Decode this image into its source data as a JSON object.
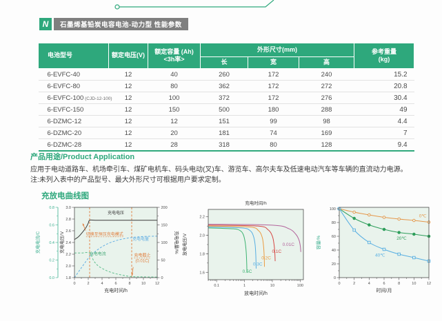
{
  "page": {
    "badge_title": "石墨烯基铅炭电容电池-动力型 性能参数",
    "logo_glyph": "N"
  },
  "colors": {
    "accent_green": "#2ea87c",
    "badge_gray": "#7f7f7f",
    "chart_bg": "#e9f3ec",
    "axis_gray": "#4a4a4a",
    "annotation_orange": "#e07b39",
    "teal_axis": "#3aae8e"
  },
  "table": {
    "headers": {
      "model": "电池型号",
      "voltage": "额定电压(V)",
      "capacity_line1": "额定容量 (Ah)",
      "capacity_line2": "<3h率>",
      "dimensions": "外形尺寸(mm)",
      "length": "长",
      "width": "宽",
      "height": "高",
      "weight_line1": "参考重量",
      "weight_line2": "(kg)"
    },
    "rows": [
      {
        "model": "6-EVFC-40",
        "suffix": "",
        "voltage": "12",
        "capacity": "40",
        "length": "260",
        "width": "172",
        "height": "240",
        "weight": "15.2"
      },
      {
        "model": "6-EVFC-80",
        "suffix": "",
        "voltage": "12",
        "capacity": "80",
        "length": "362",
        "width": "172",
        "height": "272",
        "weight": "20.8"
      },
      {
        "model": "6-EVFC-100",
        "suffix": "(CJD-12-100)",
        "voltage": "12",
        "capacity": "100",
        "length": "372",
        "width": "172",
        "height": "276",
        "weight": "30.4"
      },
      {
        "model": "6-EVFC-150",
        "suffix": "",
        "voltage": "12",
        "capacity": "150",
        "length": "500",
        "width": "180",
        "height": "288",
        "weight": "49"
      },
      {
        "model": "6-DZMC-12",
        "suffix": "",
        "voltage": "12",
        "capacity": "12",
        "length": "151",
        "width": "99",
        "height": "98",
        "weight": "4.4"
      },
      {
        "model": "6-DZMC-20",
        "suffix": "",
        "voltage": "12",
        "capacity": "20",
        "length": "181",
        "width": "74",
        "height": "169",
        "weight": "7"
      },
      {
        "model": "6-DZMC-28",
        "suffix": "",
        "voltage": "12",
        "capacity": "28",
        "length": "318",
        "width": "80",
        "height": "128",
        "weight": "9.4"
      }
    ]
  },
  "application": {
    "title": "产品用途/Product Application",
    "line1": "应用于电动道路车、机场牵引车、煤矿电机车、码头电动(叉)车、游览车、高尔夫车及低速电动汽车等车辆的直流动力电源。",
    "line2": "注:未列入表中的产品型号、最大外形尺寸可根据用户要求定制。"
  },
  "curves_section": {
    "title": "充放电曲线图"
  },
  "chart_data": [
    {
      "type": "line",
      "name": "charge-curve",
      "xlabel": "充电时间/h",
      "xlim": [
        0,
        12
      ],
      "x_ticks": [
        0,
        2,
        4,
        6,
        8,
        10,
        12
      ],
      "axes": {
        "current": {
          "label": "充电电流/C",
          "ticks": [
            0.0,
            0.2,
            0.4,
            0.6,
            0.8
          ],
          "lim": [
            0,
            0.8
          ],
          "color": "#3aae8e"
        },
        "voltage": {
          "label": "充电电压/V",
          "ticks": [
            1.8,
            2.0,
            2.2,
            2.4,
            2.6,
            2.8,
            3.0
          ],
          "lim": [
            1.8,
            3.0
          ],
          "color": "#4a4a4a"
        },
        "capacity": {
          "label": "充电电量/%",
          "ticks": [
            0,
            50,
            100,
            150,
            200
          ],
          "lim": [
            0,
            200
          ],
          "color": "#4a4a4a"
        }
      },
      "vlines": [
        2.2,
        8.3
      ],
      "series": [
        {
          "name": "充电电压",
          "axis": "voltage",
          "style": "solid",
          "color": "#3a3a3a",
          "points": [
            [
              0,
              2.45
            ],
            [
              0.6,
              2.5
            ],
            [
              1.2,
              2.58
            ],
            [
              1.7,
              2.66
            ],
            [
              2.0,
              2.73
            ],
            [
              2.2,
              2.78
            ],
            [
              3,
              2.78
            ],
            [
              5,
              2.78
            ],
            [
              8,
              2.78
            ],
            [
              12,
              2.78
            ]
          ]
        },
        {
          "name": "充电电流",
          "axis": "current",
          "style": "dashed",
          "color": "#5fbe8d",
          "points": [
            [
              0,
              0.28
            ],
            [
              1,
              0.28
            ],
            [
              2.2,
              0.28
            ],
            [
              2.8,
              0.19
            ],
            [
              3.5,
              0.13
            ],
            [
              4.5,
              0.085
            ],
            [
              5.5,
              0.055
            ],
            [
              6.5,
              0.035
            ],
            [
              7.5,
              0.02
            ],
            [
              8.3,
              0.012
            ],
            [
              10,
              0.008
            ],
            [
              12,
              0.006
            ]
          ]
        },
        {
          "name": "充电电量",
          "axis": "capacity",
          "style": "dashed",
          "color": "#62aee3",
          "points": [
            [
              0,
              0
            ],
            [
              1,
              28
            ],
            [
              2.2,
              60
            ],
            [
              3,
              74
            ],
            [
              4,
              88
            ],
            [
              5,
              98
            ],
            [
              6,
              105
            ],
            [
              7,
              110
            ],
            [
              8.3,
              114
            ],
            [
              10,
              117
            ],
            [
              12,
              118
            ]
          ]
        }
      ],
      "annotations": [
        {
          "text": "充电电压",
          "color": "#3a3a3a",
          "fx": 0.4,
          "fy": 0.1
        },
        {
          "text": "切换至恒压充电模式",
          "color": "#e07b39",
          "fx": 0.14,
          "fy": 0.4,
          "underline": true,
          "arrow": {
            "from": [
              0.135,
              0.33
            ],
            "to": [
              0.1,
              0.23
            ]
          }
        },
        {
          "text": "充电电流",
          "color": "#45a877",
          "fx": 0.18,
          "fy": 0.68
        },
        {
          "text": "充电电量",
          "color": "#62aee3",
          "fx": 0.7,
          "fy": 0.47
        },
        {
          "text": "充电截止",
          "text2": "(0.01C)",
          "color": "#e07b39",
          "fx": 0.72,
          "fy": 0.7,
          "underline": true,
          "arrow": {
            "from": [
              0.71,
              0.85
            ],
            "to": [
              0.695,
              0.97
            ]
          }
        }
      ]
    },
    {
      "type": "line",
      "name": "discharge-curve",
      "top_label": "充电时间/h",
      "xlabel": "放电时间/h",
      "ylabel": "放电电压/V",
      "xscale": "log",
      "xlim": [
        0.05,
        130
      ],
      "x_ticks": [
        0.1,
        1,
        10,
        100
      ],
      "ylim": [
        1.52,
        2.28
      ],
      "y_ticks": [
        1.6,
        1.8,
        2.0,
        2.2
      ],
      "series": [
        {
          "name": "0.5C",
          "color": "#3cb371",
          "points": [
            [
              0.05,
              2.08
            ],
            [
              0.4,
              2.07
            ],
            [
              0.7,
              2.05
            ],
            [
              0.9,
              2.01
            ],
            [
              1.05,
              1.93
            ],
            [
              1.15,
              1.82
            ],
            [
              1.2,
              1.7
            ],
            [
              1.22,
              1.6
            ]
          ]
        },
        {
          "name": "0.3C",
          "color": "#56aee2",
          "points": [
            [
              0.05,
              2.09
            ],
            [
              0.8,
              2.08
            ],
            [
              1.6,
              2.05
            ],
            [
              2.1,
              1.99
            ],
            [
              2.4,
              1.9
            ],
            [
              2.55,
              1.78
            ],
            [
              2.62,
              1.64
            ]
          ]
        },
        {
          "name": "0.2C",
          "color": "#eb9b3f",
          "points": [
            [
              0.05,
              2.1
            ],
            [
              1.5,
              2.09
            ],
            [
              3.2,
              2.05
            ],
            [
              4.3,
              1.98
            ],
            [
              4.8,
              1.89
            ],
            [
              5.1,
              1.77
            ],
            [
              5.2,
              1.66
            ]
          ]
        },
        {
          "name": "0.1C",
          "color": "#d64541",
          "points": [
            [
              0.05,
              2.11
            ],
            [
              3,
              2.1
            ],
            [
              7,
              2.06
            ],
            [
              10,
              1.99
            ],
            [
              11.5,
              1.9
            ],
            [
              12.3,
              1.8
            ],
            [
              12.6,
              1.72
            ]
          ]
        },
        {
          "name": "0.01C",
          "color": "#b2639b",
          "points": [
            [
              0.05,
              2.12
            ],
            [
              10,
              2.11
            ],
            [
              40,
              2.07
            ],
            [
              70,
              2.01
            ],
            [
              90,
              1.95
            ],
            [
              100,
              1.89
            ],
            [
              105,
              1.82
            ]
          ]
        }
      ],
      "labels": [
        {
          "text": "0.5C",
          "color": "#3cb371",
          "fx": 0.36,
          "fy": 0.9
        },
        {
          "text": "0.3C",
          "color": "#56aee2",
          "fx": 0.47,
          "fy": 0.8
        },
        {
          "text": "0.2C",
          "color": "#eb9b3f",
          "fx": 0.56,
          "fy": 0.71
        },
        {
          "text": "0.1C",
          "color": "#d64541",
          "fx": 0.67,
          "fy": 0.62
        },
        {
          "text": "0.01C",
          "color": "#b2639b",
          "fx": 0.78,
          "fy": 0.52
        }
      ]
    },
    {
      "type": "line",
      "name": "self-discharge-curve",
      "xlabel": "时间/月",
      "ylabel": "容量/%",
      "xlim": [
        0,
        12
      ],
      "x_ticks": [
        0,
        2,
        4,
        6,
        8,
        10,
        12
      ],
      "ylim": [
        0,
        102
      ],
      "y_ticks": [
        0,
        20,
        40,
        60,
        80,
        100
      ],
      "series": [
        {
          "name": "0℃",
          "color": "#e5974a",
          "marker": "circle-open",
          "points": [
            [
              0,
              100
            ],
            [
              2,
              95
            ],
            [
              4,
              91
            ],
            [
              6,
              87.5
            ],
            [
              8,
              85
            ],
            [
              10,
              83
            ],
            [
              12,
              80.5
            ]
          ]
        },
        {
          "name": "20℃",
          "color": "#2e9e5b",
          "marker": "circle-filled",
          "points": [
            [
              0,
              100
            ],
            [
              2,
              86
            ],
            [
              4,
              76.5
            ],
            [
              6,
              70
            ],
            [
              8,
              65.5
            ],
            [
              10,
              63
            ],
            [
              12,
              60
            ]
          ]
        },
        {
          "name": "40℃",
          "color": "#56aee2",
          "marker": "square-open",
          "points": [
            [
              0,
              100
            ],
            [
              2,
              69
            ],
            [
              4,
              51
            ],
            [
              6,
              41
            ],
            [
              8,
              34
            ],
            [
              10,
              29
            ],
            [
              12,
              24
            ]
          ]
        }
      ],
      "labels": [
        {
          "text": "0℃",
          "color": "#e5974a",
          "fx": 0.89,
          "fy": 0.14
        },
        {
          "text": "20℃",
          "color": "#2e9e5b",
          "fx": 0.64,
          "fy": 0.46
        },
        {
          "text": "40℃",
          "color": "#56aee2",
          "fx": 0.4,
          "fy": 0.7
        }
      ]
    }
  ]
}
